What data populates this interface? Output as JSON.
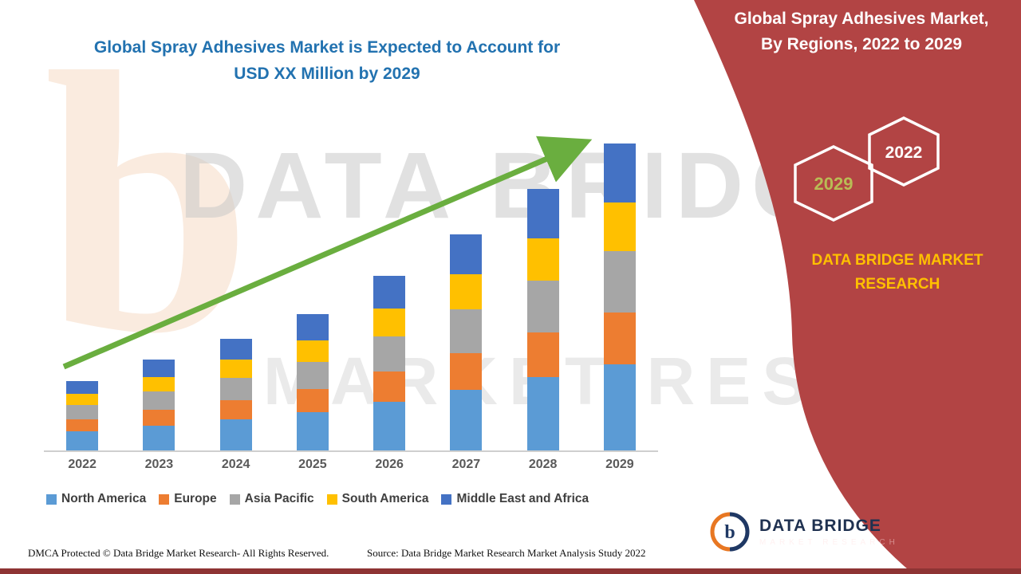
{
  "header": {
    "title_line1": "Global Spray Adhesives Market is Expected to Account for",
    "title_line2": "USD XX Million by 2029",
    "title_color": "#2272B0"
  },
  "watermark": {
    "logo_letter": "b",
    "line1": "DATA BRIDGE",
    "line2": "MARKET RESEARCH"
  },
  "side_panel": {
    "background": "#B24444",
    "title_line1": "Global Spray Adhesives Market,",
    "title_line2": "By Regions, 2022 to 2029",
    "badges": [
      {
        "label": "2029",
        "text_color": "#B9BC55"
      },
      {
        "label": "2022",
        "text_color": "#FFFFFF"
      }
    ],
    "brand_line1": "DATA BRIDGE MARKET",
    "brand_line2": "RESEARCH",
    "brand_color": "#FFC000"
  },
  "logo": {
    "name": "DATA BRIDGE",
    "subtitle": "MARKET RESEARCH"
  },
  "footer": {
    "dmca": "DMCA Protected © Data Bridge Market Research- All Rights Reserved.",
    "source": "Source: Data Bridge Market Research Market Analysis Study 2022"
  },
  "chart_data": {
    "type": "bar",
    "stacked": true,
    "title": "Global Spray Adhesives Market, By Regions, 2022 to 2029",
    "categories": [
      "2022",
      "2023",
      "2024",
      "2025",
      "2026",
      "2027",
      "2028",
      "2029"
    ],
    "series": [
      {
        "name": "North America",
        "color": "#5B9BD5",
        "values": [
          2.8,
          3.6,
          4.5,
          5.5,
          7.0,
          8.7,
          10.5,
          12.3
        ]
      },
      {
        "name": "Europe",
        "color": "#ED7D31",
        "values": [
          1.7,
          2.2,
          2.7,
          3.3,
          4.3,
          5.3,
          6.4,
          7.5
        ]
      },
      {
        "name": "Asia Pacific",
        "color": "#A6A6A6",
        "values": [
          2.0,
          2.6,
          3.2,
          3.9,
          5.0,
          6.2,
          7.5,
          8.8
        ]
      },
      {
        "name": "South America",
        "color": "#FFC000",
        "values": [
          1.6,
          2.1,
          2.6,
          3.1,
          4.0,
          5.0,
          6.0,
          7.0
        ]
      },
      {
        "name": "Middle East and Africa",
        "color": "#4472C4",
        "values": [
          1.9,
          2.5,
          3.0,
          3.7,
          4.7,
          5.8,
          7.1,
          8.4
        ]
      }
    ],
    "value_axis_visible": false,
    "legend_position": "bottom",
    "trend_arrow": {
      "color": "#6AAE3F",
      "direction": "up-right"
    }
  }
}
